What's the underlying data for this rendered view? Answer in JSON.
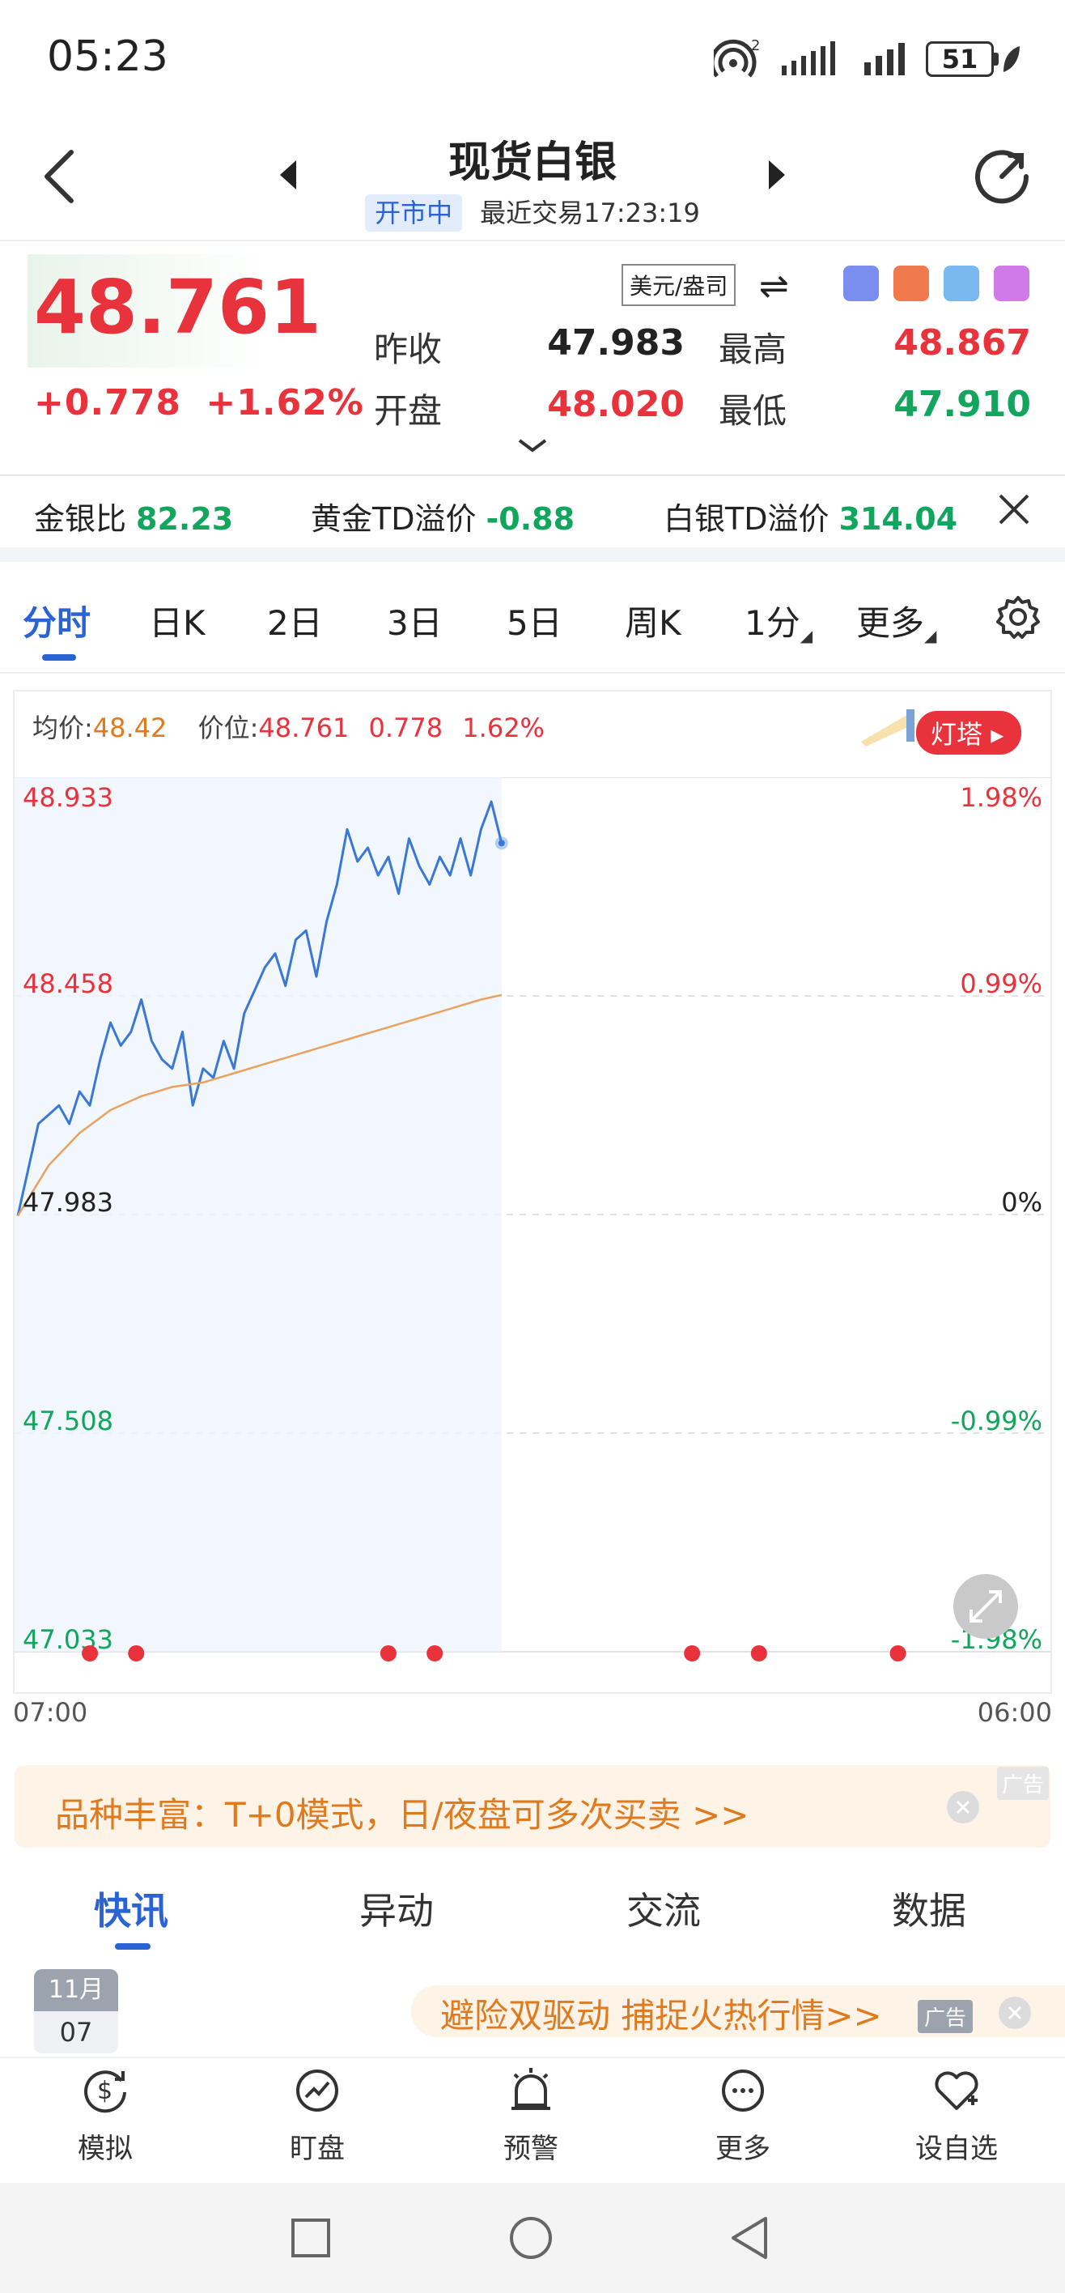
{
  "status": {
    "time": "05:23",
    "battery": "51",
    "signal_label": "2"
  },
  "header": {
    "title": "现货白银",
    "badge": "开市中",
    "last_trade": "最近交易17:23:19"
  },
  "quote": {
    "price": "48.761",
    "change_abs": "+0.778",
    "change_pct": "+1.62%",
    "unit": "美元/盎司",
    "stats": [
      {
        "label": "昨收",
        "value": "47.983",
        "color": "#222222"
      },
      {
        "label": "最高",
        "value": "48.867",
        "color": "#e8323c"
      },
      {
        "label": "开盘",
        "value": "48.020",
        "color": "#e8323c"
      },
      {
        "label": "最低",
        "value": "47.910",
        "color": "#12a55e"
      }
    ]
  },
  "ratios": {
    "gold_silver_label": "金银比",
    "gold_silver_value": "82.23",
    "gold_td_label": "黄金TD溢价",
    "gold_td_value": "-0.88",
    "silver_td_label": "白银TD溢价",
    "silver_td_value": "314.04"
  },
  "chart_tabs": [
    "分时",
    "日K",
    "2日",
    "3日",
    "5日",
    "周K",
    "1分",
    "更多"
  ],
  "chart_info": {
    "avg_label": "均价:",
    "avg_value": "48.42",
    "price_label": "价位:",
    "price_value": "48.761",
    "change_value": "0.778",
    "pct_value": "1.62%",
    "lighthouse_label": "灯塔"
  },
  "chart_data": {
    "type": "line",
    "title": "",
    "xlabel": "",
    "ylabel": "",
    "x_range_labels": [
      "07:00",
      "06:00"
    ],
    "ylim": [
      47.033,
      48.933
    ],
    "y_ticks_left": [
      {
        "value": 48.933,
        "label": "48.933",
        "color": "#e8323c"
      },
      {
        "value": 48.458,
        "label": "48.458",
        "color": "#e8323c"
      },
      {
        "value": 47.983,
        "label": "47.983",
        "color": "#222222"
      },
      {
        "value": 47.508,
        "label": "47.508",
        "color": "#12a55e"
      },
      {
        "value": 47.033,
        "label": "47.033",
        "color": "#12a55e"
      }
    ],
    "y_ticks_right": [
      {
        "value": 48.933,
        "label": "1.98%",
        "color": "#e8323c"
      },
      {
        "value": 48.458,
        "label": "0.99%",
        "color": "#e8323c"
      },
      {
        "value": 47.983,
        "label": "0%",
        "color": "#222222"
      },
      {
        "value": 47.508,
        "label": "-0.99%",
        "color": "#12a55e"
      },
      {
        "value": 47.033,
        "label": "-1.98%",
        "color": "#12a55e"
      }
    ],
    "session_fraction_elapsed": 0.47,
    "series": [
      {
        "color": "#3a78d8",
        "x": [
          0,
          0.01,
          0.02,
          0.03,
          0.04,
          0.05,
          0.06,
          0.07,
          0.08,
          0.09,
          0.1,
          0.11,
          0.12,
          0.13,
          0.14,
          0.15,
          0.16,
          0.17,
          0.18,
          0.19,
          0.2,
          0.21,
          0.22,
          0.23,
          0.24,
          0.25,
          0.26,
          0.27,
          0.28,
          0.29,
          0.3,
          0.31,
          0.32,
          0.33,
          0.34,
          0.35,
          0.36,
          0.37,
          0.38,
          0.39,
          0.4,
          0.41,
          0.42,
          0.43,
          0.44,
          0.45,
          0.46,
          0.47
        ],
        "values": [
          47.98,
          48.08,
          48.18,
          48.2,
          48.22,
          48.18,
          48.25,
          48.22,
          48.32,
          48.4,
          48.35,
          48.38,
          48.45,
          48.36,
          48.32,
          48.3,
          48.38,
          48.22,
          48.3,
          48.28,
          48.36,
          48.3,
          48.42,
          48.47,
          48.52,
          48.55,
          48.48,
          48.58,
          48.6,
          48.5,
          48.62,
          48.7,
          48.82,
          48.75,
          48.78,
          48.72,
          48.76,
          48.68,
          48.8,
          48.74,
          48.7,
          48.76,
          48.72,
          48.8,
          48.72,
          48.82,
          48.88,
          48.79
        ]
      },
      {
        "color": "#e9a25f",
        "x": [
          0,
          0.03,
          0.06,
          0.09,
          0.12,
          0.15,
          0.18,
          0.21,
          0.24,
          0.27,
          0.3,
          0.33,
          0.36,
          0.39,
          0.42,
          0.45,
          0.47
        ],
        "values": [
          47.98,
          48.09,
          48.16,
          48.21,
          48.24,
          48.26,
          48.27,
          48.29,
          48.31,
          48.33,
          48.35,
          48.37,
          48.39,
          48.41,
          48.43,
          48.45,
          48.46
        ]
      }
    ],
    "event_markers_x": [
      0.07,
      0.115,
      0.36,
      0.405,
      0.655,
      0.72,
      0.855
    ],
    "grid": true,
    "legend": "none"
  },
  "ad1": {
    "text": "品种丰富：T+0模式，日/夜盘可多次买卖 >>",
    "tag": "广告"
  },
  "news_tabs": [
    "快讯",
    "异动",
    "交流",
    "数据"
  ],
  "news_date": {
    "month": "11月",
    "day": "07"
  },
  "ad2": {
    "text": "避险双驱动 捕捉火热行情>>",
    "tag": "广告"
  },
  "bottom_bar": [
    {
      "label": "模拟",
      "icon": "dollar-cycle-icon"
    },
    {
      "label": "盯盘",
      "icon": "chart-circle-icon"
    },
    {
      "label": "预警",
      "icon": "alarm-bell-icon"
    },
    {
      "label": "更多",
      "icon": "more-dots-icon"
    },
    {
      "label": "设自选",
      "icon": "heart-add-icon"
    }
  ]
}
